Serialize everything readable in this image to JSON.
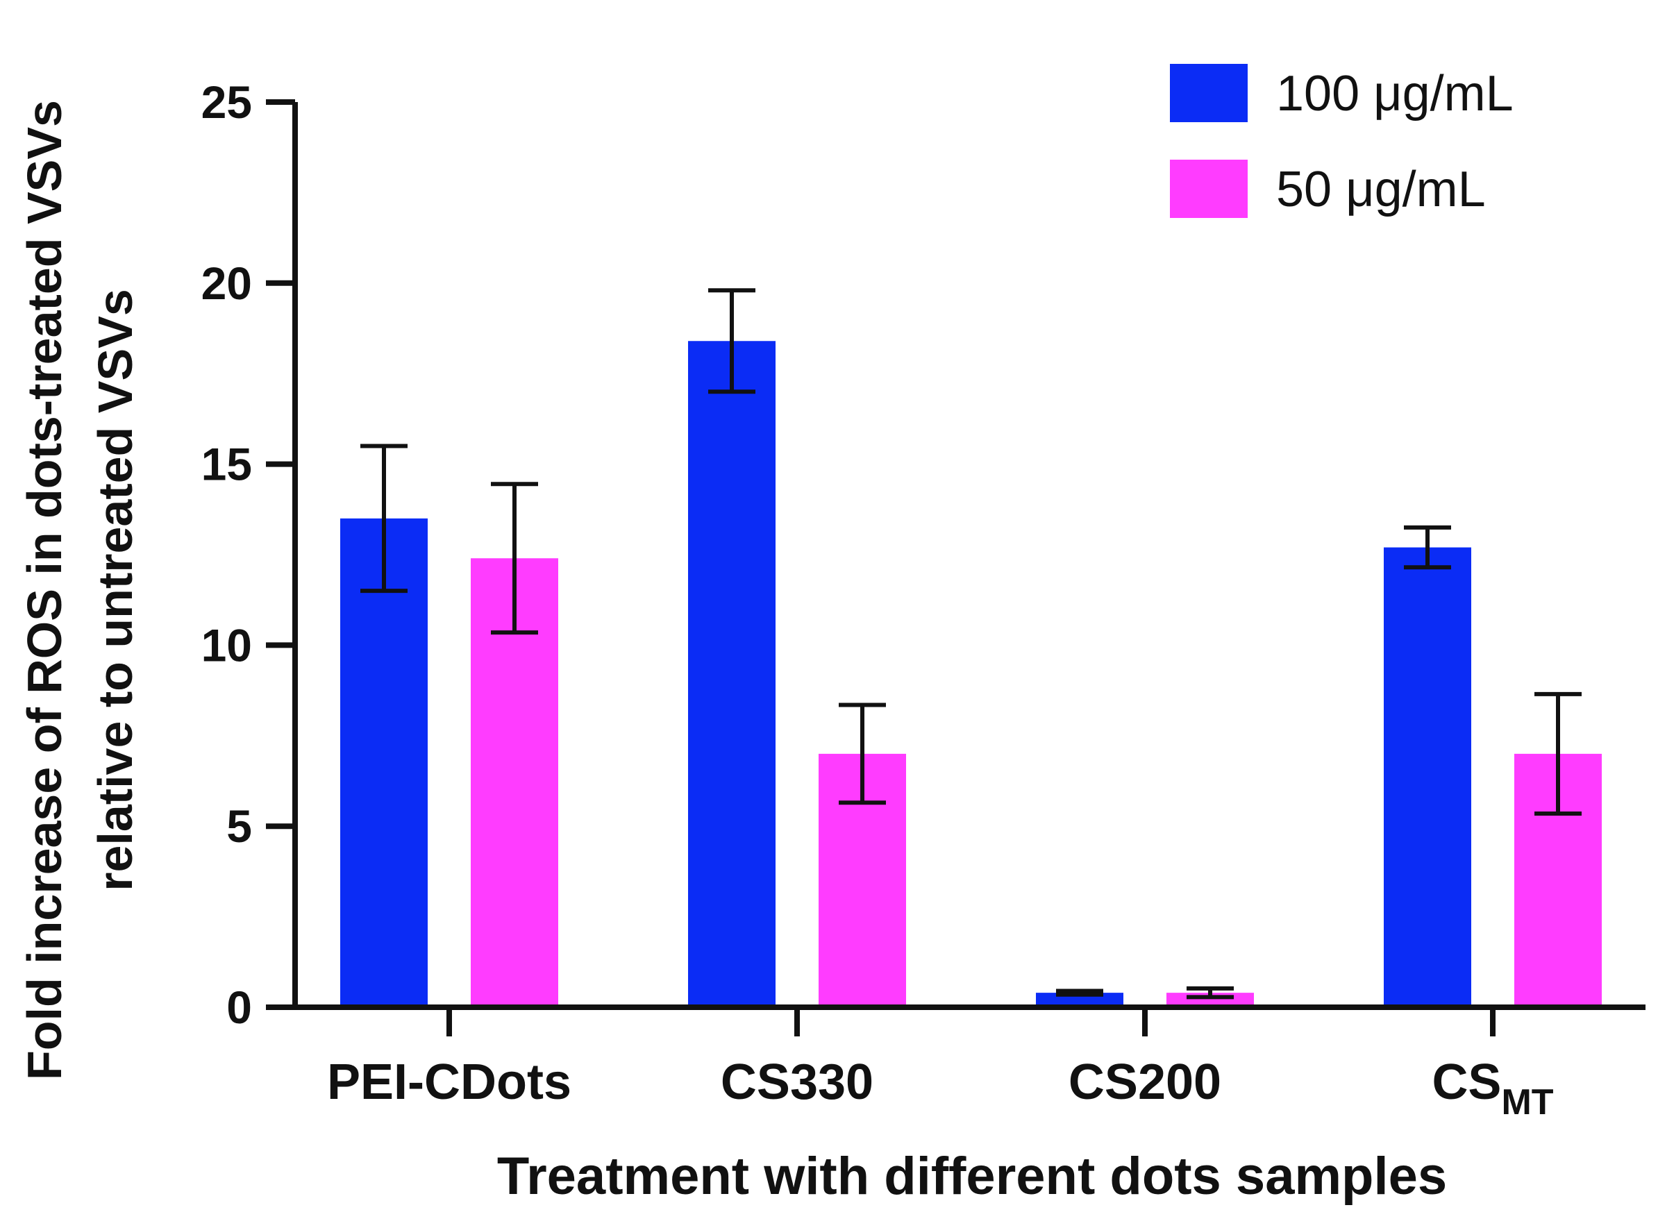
{
  "chart_data": {
    "type": "bar",
    "title": "",
    "xlabel": "Treatment with different dots samples",
    "ylabel_lines": [
      "Fold increase of ROS in dots-treated VSVs",
      "relative to untreated VSVs"
    ],
    "ylim": [
      0,
      25
    ],
    "yticks": [
      "0",
      "5",
      "10",
      "15",
      "20",
      "25"
    ],
    "categories": [
      {
        "main": "PEI-CDots",
        "sub": ""
      },
      {
        "main": "CS330",
        "sub": ""
      },
      {
        "main": "CS200",
        "sub": ""
      },
      {
        "main": "CS",
        "sub": "MT"
      }
    ],
    "series": [
      {
        "name": "100 μg/mL",
        "color": "#0b2cf5",
        "values": [
          13.5,
          18.4,
          0.4,
          12.7
        ],
        "errors": [
          2.0,
          1.4,
          0.05,
          0.55
        ]
      },
      {
        "name": "50 μg/mL",
        "color": "#ff3cff",
        "values": [
          12.4,
          7.0,
          0.4,
          7.0
        ],
        "errors": [
          2.05,
          1.35,
          0.12,
          1.65
        ]
      }
    ],
    "legend_position": "top-right",
    "grid": false
  }
}
